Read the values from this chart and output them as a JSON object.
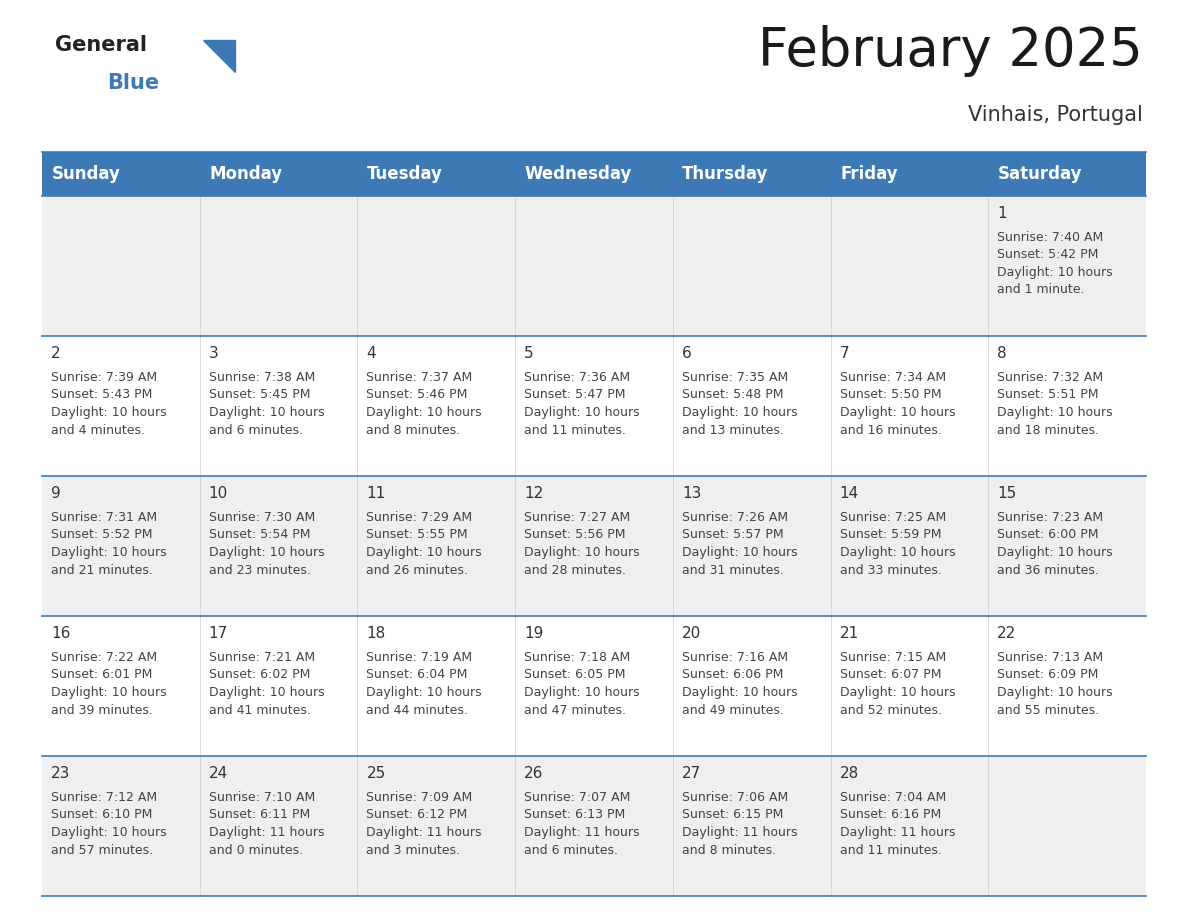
{
  "title": "February 2025",
  "subtitle": "Vinhais, Portugal",
  "header_color": "#3d7ab5",
  "header_text_color": "#ffffff",
  "row_colors": [
    "#efefef",
    "#ffffff",
    "#efefef",
    "#ffffff",
    "#efefef"
  ],
  "border_color": "#3d7ab5",
  "text_color": "#444444",
  "day_num_color": "#333333",
  "day_headers": [
    "Sunday",
    "Monday",
    "Tuesday",
    "Wednesday",
    "Thursday",
    "Friday",
    "Saturday"
  ],
  "title_fontsize": 38,
  "subtitle_fontsize": 15,
  "header_fontsize": 12,
  "day_num_fontsize": 11,
  "info_fontsize": 9,
  "logo_general_color": "#222222",
  "logo_blue_color": "#3d7ab5",
  "logo_triangle_color": "#3d7ab5",
  "calendar_data": [
    [
      null,
      null,
      null,
      null,
      null,
      null,
      {
        "day": 1,
        "sunrise": "7:40 AM",
        "sunset": "5:42 PM",
        "daylight": "10 hours and 1 minute."
      }
    ],
    [
      {
        "day": 2,
        "sunrise": "7:39 AM",
        "sunset": "5:43 PM",
        "daylight": "10 hours and 4 minutes."
      },
      {
        "day": 3,
        "sunrise": "7:38 AM",
        "sunset": "5:45 PM",
        "daylight": "10 hours and 6 minutes."
      },
      {
        "day": 4,
        "sunrise": "7:37 AM",
        "sunset": "5:46 PM",
        "daylight": "10 hours and 8 minutes."
      },
      {
        "day": 5,
        "sunrise": "7:36 AM",
        "sunset": "5:47 PM",
        "daylight": "10 hours and 11 minutes."
      },
      {
        "day": 6,
        "sunrise": "7:35 AM",
        "sunset": "5:48 PM",
        "daylight": "10 hours and 13 minutes."
      },
      {
        "day": 7,
        "sunrise": "7:34 AM",
        "sunset": "5:50 PM",
        "daylight": "10 hours and 16 minutes."
      },
      {
        "day": 8,
        "sunrise": "7:32 AM",
        "sunset": "5:51 PM",
        "daylight": "10 hours and 18 minutes."
      }
    ],
    [
      {
        "day": 9,
        "sunrise": "7:31 AM",
        "sunset": "5:52 PM",
        "daylight": "10 hours and 21 minutes."
      },
      {
        "day": 10,
        "sunrise": "7:30 AM",
        "sunset": "5:54 PM",
        "daylight": "10 hours and 23 minutes."
      },
      {
        "day": 11,
        "sunrise": "7:29 AM",
        "sunset": "5:55 PM",
        "daylight": "10 hours and 26 minutes."
      },
      {
        "day": 12,
        "sunrise": "7:27 AM",
        "sunset": "5:56 PM",
        "daylight": "10 hours and 28 minutes."
      },
      {
        "day": 13,
        "sunrise": "7:26 AM",
        "sunset": "5:57 PM",
        "daylight": "10 hours and 31 minutes."
      },
      {
        "day": 14,
        "sunrise": "7:25 AM",
        "sunset": "5:59 PM",
        "daylight": "10 hours and 33 minutes."
      },
      {
        "day": 15,
        "sunrise": "7:23 AM",
        "sunset": "6:00 PM",
        "daylight": "10 hours and 36 minutes."
      }
    ],
    [
      {
        "day": 16,
        "sunrise": "7:22 AM",
        "sunset": "6:01 PM",
        "daylight": "10 hours and 39 minutes."
      },
      {
        "day": 17,
        "sunrise": "7:21 AM",
        "sunset": "6:02 PM",
        "daylight": "10 hours and 41 minutes."
      },
      {
        "day": 18,
        "sunrise": "7:19 AM",
        "sunset": "6:04 PM",
        "daylight": "10 hours and 44 minutes."
      },
      {
        "day": 19,
        "sunrise": "7:18 AM",
        "sunset": "6:05 PM",
        "daylight": "10 hours and 47 minutes."
      },
      {
        "day": 20,
        "sunrise": "7:16 AM",
        "sunset": "6:06 PM",
        "daylight": "10 hours and 49 minutes."
      },
      {
        "day": 21,
        "sunrise": "7:15 AM",
        "sunset": "6:07 PM",
        "daylight": "10 hours and 52 minutes."
      },
      {
        "day": 22,
        "sunrise": "7:13 AM",
        "sunset": "6:09 PM",
        "daylight": "10 hours and 55 minutes."
      }
    ],
    [
      {
        "day": 23,
        "sunrise": "7:12 AM",
        "sunset": "6:10 PM",
        "daylight": "10 hours and 57 minutes."
      },
      {
        "day": 24,
        "sunrise": "7:10 AM",
        "sunset": "6:11 PM",
        "daylight": "11 hours and 0 minutes."
      },
      {
        "day": 25,
        "sunrise": "7:09 AM",
        "sunset": "6:12 PM",
        "daylight": "11 hours and 3 minutes."
      },
      {
        "day": 26,
        "sunrise": "7:07 AM",
        "sunset": "6:13 PM",
        "daylight": "11 hours and 6 minutes."
      },
      {
        "day": 27,
        "sunrise": "7:06 AM",
        "sunset": "6:15 PM",
        "daylight": "11 hours and 8 minutes."
      },
      {
        "day": 28,
        "sunrise": "7:04 AM",
        "sunset": "6:16 PM",
        "daylight": "11 hours and 11 minutes."
      },
      null
    ]
  ]
}
